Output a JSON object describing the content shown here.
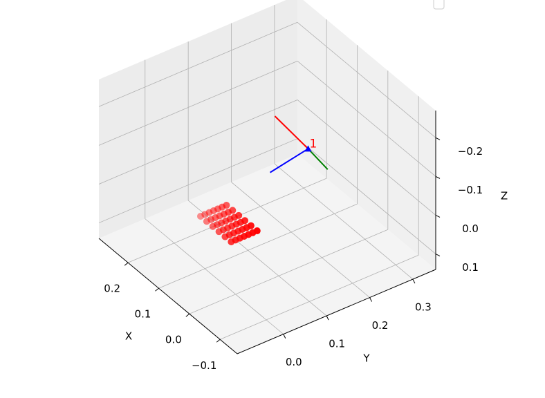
{
  "chart_data": {
    "type": "scatter3d",
    "xlabel": "X",
    "ylabel": "Y",
    "zlabel": "Z",
    "xlim": [
      -0.156,
      0.295
    ],
    "ylim": [
      -0.107,
      0.353
    ],
    "zlim": [
      0.14,
      -0.27
    ],
    "xticks": [
      {
        "value": -0.1,
        "label": "−0.1"
      },
      {
        "value": 0.0,
        "label": "0.0"
      },
      0.1,
      0.2
    ],
    "yticks": [
      {
        "value": 0.0,
        "label": "0.0"
      },
      0.1,
      0.2,
      0.3
    ],
    "zticks": [
      {
        "value": -0.2,
        "label": "−0.2"
      },
      {
        "value": -0.1,
        "label": "−0.1"
      },
      {
        "value": 0.0,
        "label": "0.0"
      },
      0.1
    ],
    "grid": true,
    "color": "#ff0000",
    "x": [
      0,
      0,
      0,
      0,
      0,
      0,
      0,
      0.02,
      0.02,
      0.02,
      0.02,
      0.02,
      0.02,
      0.02,
      0.04,
      0.04,
      0.04,
      0.04,
      0.04,
      0.04,
      0.04,
      0.06,
      0.06,
      0.06,
      0.06,
      0.06,
      0.06,
      0.06,
      0.08,
      0.08,
      0.08,
      0.08,
      0.08,
      0.08,
      0.08,
      0.1,
      0.1,
      0.1,
      0.1,
      0.1,
      0.1,
      0.1
    ],
    "y": [
      -0.01,
      0,
      0.01,
      0.02,
      0.03,
      0.04,
      0.05,
      -0.01,
      0,
      0.01,
      0.02,
      0.03,
      0.04,
      0.05,
      -0.01,
      0,
      0.01,
      0.02,
      0.03,
      0.04,
      0.05,
      -0.01,
      0,
      0.01,
      0.02,
      0.03,
      0.04,
      0.05,
      -0.01,
      0,
      0.01,
      0.02,
      0.03,
      0.04,
      0.05,
      -0.01,
      0,
      0.01,
      0.02,
      0.03,
      0.04,
      0.05
    ],
    "z": [
      0,
      0,
      0,
      0,
      0,
      0,
      0,
      0,
      0,
      0,
      0,
      0,
      0,
      0,
      0,
      0,
      0,
      0,
      0,
      0,
      0,
      0,
      0,
      0,
      0,
      0,
      0,
      0,
      0,
      0,
      0,
      0,
      0,
      0,
      0,
      0,
      0,
      0,
      0,
      0,
      0,
      0
    ],
    "frame_axes": [
      {
        "color": "#ff0000",
        "start": [
          0.056,
          0.208,
          -0.1
        ],
        "end": [
          0.177,
          0.217,
          -0.1
        ]
      },
      {
        "color": "#008000",
        "start": [
          0.056,
          0.208,
          -0.1
        ],
        "end": [
          -0.019,
          0.2,
          -0.1
        ]
      },
      {
        "color": "#0000ff",
        "start": [
          0.056,
          0.208,
          -0.1
        ],
        "end": [
          0.18,
          0.208,
          0.043
        ]
      }
    ],
    "annotations": [
      {
        "text": "1",
        "color": "#ff0000",
        "x": 0.056,
        "y": 0.208,
        "z": -0.1
      }
    ]
  }
}
